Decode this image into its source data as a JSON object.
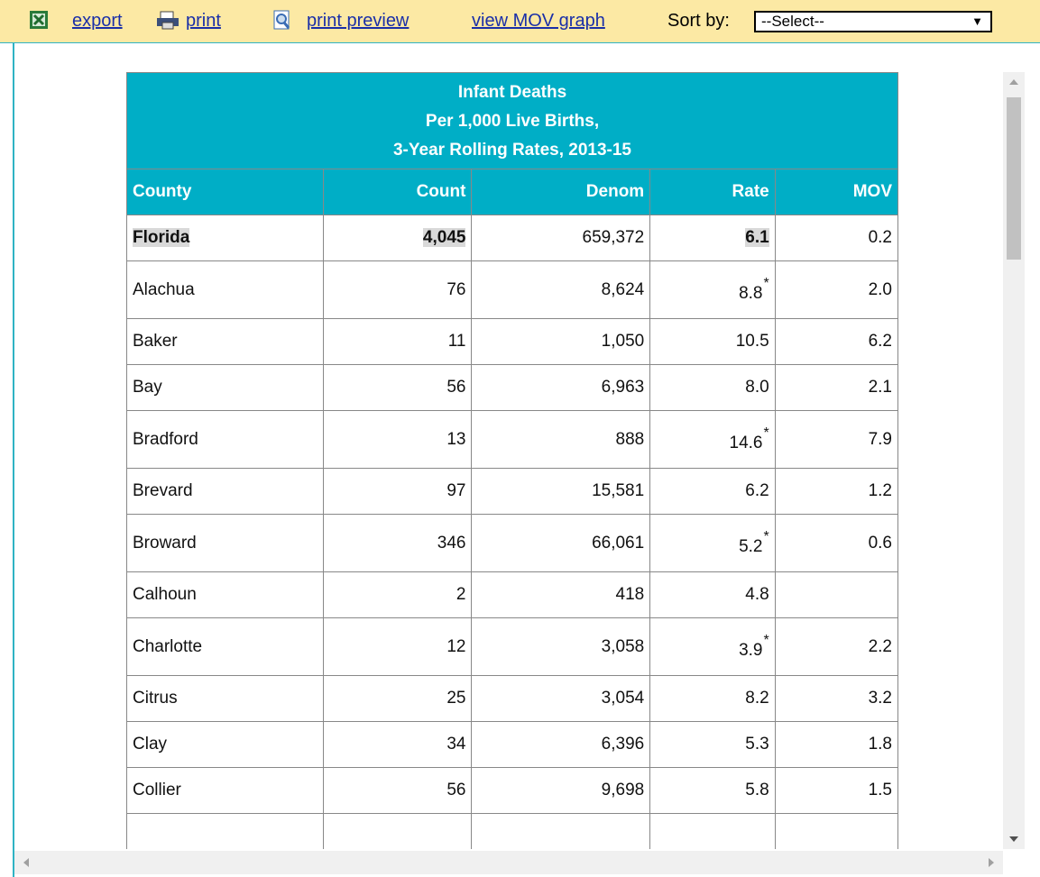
{
  "toolbar": {
    "export": "export",
    "print": "print",
    "print_preview": "print preview",
    "mov_graph": "view MOV graph",
    "sort_label": "Sort by:",
    "sort_value": "--Select--"
  },
  "table": {
    "title_lines": [
      "Infant Deaths",
      "Per 1,000 Live Births,",
      "3-Year Rolling Rates, 2013-15"
    ],
    "columns": [
      "County",
      "Count",
      "Denom",
      "Rate",
      "MOV"
    ],
    "rows": [
      {
        "county": "Florida",
        "count": "4,045",
        "denom": "659,372",
        "rate": "6.1",
        "mov": "0.2"
      },
      {
        "county": "Alachua",
        "count": "76",
        "denom": "8,624",
        "rate": "8.8",
        "note": "*",
        "mov": "2.0"
      },
      {
        "county": "Baker",
        "count": "11",
        "denom": "1,050",
        "rate": "10.5",
        "mov": "6.2"
      },
      {
        "county": "Bay",
        "count": "56",
        "denom": "6,963",
        "rate": "8.0",
        "mov": "2.1"
      },
      {
        "county": "Bradford",
        "count": "13",
        "denom": "888",
        "rate": "14.6",
        "note": "*",
        "mov": "7.9"
      },
      {
        "county": "Brevard",
        "count": "97",
        "denom": "15,581",
        "rate": "6.2",
        "mov": "1.2"
      },
      {
        "county": "Broward",
        "count": "346",
        "denom": "66,061",
        "rate": "5.2",
        "note": "*",
        "mov": "0.6"
      },
      {
        "county": "Calhoun",
        "count": "2",
        "denom": "418",
        "rate": "4.8",
        "mov": null
      },
      {
        "county": "Charlotte",
        "count": "12",
        "denom": "3,058",
        "rate": "3.9",
        "note": "*",
        "mov": "2.2"
      },
      {
        "county": "Citrus",
        "count": "25",
        "denom": "3,054",
        "rate": "8.2",
        "mov": "3.2"
      },
      {
        "county": "Clay",
        "count": "34",
        "denom": "6,396",
        "rate": "5.3",
        "mov": "1.8"
      },
      {
        "county": "Collier",
        "count": "56",
        "denom": "9,698",
        "rate": "5.8",
        "mov": "1.5"
      }
    ]
  }
}
